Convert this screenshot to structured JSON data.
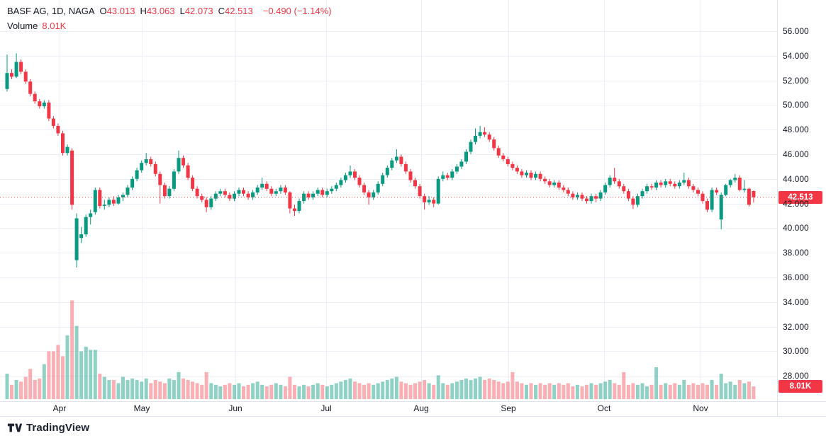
{
  "header": {
    "symbol_title": "BASF AG, 1D, NAGA",
    "ohlc_items": [
      {
        "label": "O",
        "value": "43.013"
      },
      {
        "label": "H",
        "value": "43.063"
      },
      {
        "label": "L",
        "value": "42.073"
      },
      {
        "label": "C",
        "value": "42.513"
      }
    ],
    "change_text": "−0.490 (−1.14%)",
    "volume_label": "Volume",
    "volume_value": "8.01K"
  },
  "price_axis": {
    "tick_labels": [
      "56.000",
      "54.000",
      "52.000",
      "50.000",
      "48.000",
      "46.000",
      "44.000",
      "42.000",
      "40.000",
      "38.000",
      "36.000",
      "34.000",
      "32.000",
      "30.000",
      "28.000"
    ],
    "last_price_badge": "42.513",
    "volume_badge": "8.01K"
  },
  "time_axis": {
    "month_labels": [
      "Apr",
      "May",
      "Jun",
      "Jul",
      "Aug",
      "Sep",
      "Oct",
      "Nov"
    ]
  },
  "logo_text": "TradingView",
  "colors": {
    "up": "#089981",
    "down": "#f23645",
    "vol_up": "rgba(8,153,129,0.45)",
    "vol_down": "rgba(242,54,69,0.40)",
    "grid": "#edf0f6",
    "separator": "#dfe3eb",
    "axis_text": "#131722",
    "badge_bg": "#f23645",
    "last_price_line": "#f23645",
    "background": "#ffffff"
  },
  "chart_data": {
    "type": "candlestick",
    "title": "BASF AG, 1D, NAGA",
    "symbol": "BASF AG",
    "interval": "1D",
    "exchange": "NAGA",
    "legend_last": {
      "open": 43.013,
      "high": 43.063,
      "low": 42.073,
      "close": 42.513,
      "change": -0.49,
      "change_pct": -1.14,
      "volume_k": 8.01
    },
    "price_ticks": [
      28,
      30,
      32,
      34,
      36,
      38,
      40,
      42,
      44,
      46,
      48,
      50,
      52,
      54,
      56
    ],
    "months": [
      "Apr",
      "May",
      "Jun",
      "Jul",
      "Aug",
      "Sep",
      "Oct",
      "Nov"
    ],
    "last_close": 42.513,
    "volume_unit": "K",
    "candles_format": [
      "open",
      "high",
      "low",
      "close",
      "volume_k"
    ],
    "candles": [
      [
        51.3,
        54.1,
        51.1,
        52.6,
        16
      ],
      [
        52.6,
        52.9,
        52.1,
        52.3,
        9
      ],
      [
        52.3,
        54.2,
        52.2,
        53.5,
        12
      ],
      [
        53.5,
        53.7,
        52.5,
        52.7,
        11
      ],
      [
        52.7,
        52.9,
        51.7,
        51.9,
        14
      ],
      [
        51.9,
        52.1,
        50.7,
        50.9,
        19
      ],
      [
        50.9,
        51.1,
        50.1,
        50.3,
        12
      ],
      [
        50.3,
        50.5,
        49.7,
        49.9,
        13
      ],
      [
        49.9,
        50.4,
        49.7,
        50.2,
        22
      ],
      [
        50.2,
        50.4,
        48.7,
        48.9,
        30
      ],
      [
        48.9,
        49.1,
        48.1,
        48.3,
        30
      ],
      [
        48.3,
        48.5,
        47.5,
        47.7,
        34
      ],
      [
        47.7,
        47.9,
        45.9,
        46.1,
        27
      ],
      [
        46.1,
        46.8,
        45.9,
        46.6,
        40
      ],
      [
        46.3,
        46.5,
        41.5,
        41.9,
        62
      ],
      [
        37.4,
        41.2,
        36.8,
        40.8,
        46
      ],
      [
        39.2,
        40.1,
        38.8,
        39.5,
        30
      ],
      [
        39.5,
        41.1,
        39.3,
        40.9,
        33
      ],
      [
        40.9,
        41.5,
        40.3,
        41.2,
        31
      ],
      [
        41.3,
        43.3,
        41.1,
        43.1,
        31
      ],
      [
        43.1,
        43.3,
        41.6,
        41.8,
        16
      ],
      [
        41.8,
        42.3,
        41.5,
        41.9,
        14
      ],
      [
        41.9,
        42.5,
        41.7,
        42.3,
        12
      ],
      [
        42.3,
        42.6,
        41.8,
        42.0,
        12
      ],
      [
        42.0,
        42.7,
        41.9,
        42.5,
        10
      ],
      [
        42.5,
        42.9,
        42.2,
        42.7,
        14
      ],
      [
        42.7,
        43.5,
        42.5,
        43.3,
        12
      ],
      [
        43.3,
        44.2,
        43.1,
        44.0,
        13
      ],
      [
        44.0,
        44.9,
        43.8,
        44.7,
        12
      ],
      [
        44.7,
        45.5,
        44.5,
        45.3,
        11
      ],
      [
        45.3,
        46.1,
        45.1,
        45.6,
        13
      ],
      [
        45.6,
        45.8,
        45.0,
        45.2,
        10
      ],
      [
        45.2,
        45.4,
        44.2,
        44.4,
        12
      ],
      [
        44.4,
        44.6,
        42.0,
        43.5,
        11
      ],
      [
        43.5,
        43.7,
        42.4,
        42.6,
        10
      ],
      [
        42.6,
        43.4,
        42.4,
        43.2,
        13
      ],
      [
        43.2,
        44.8,
        43.0,
        44.6,
        12
      ],
      [
        44.6,
        46.3,
        44.4,
        45.7,
        17
      ],
      [
        45.7,
        45.9,
        44.9,
        45.1,
        13
      ],
      [
        45.1,
        45.3,
        43.9,
        44.1,
        12
      ],
      [
        44.1,
        44.3,
        43.0,
        43.2,
        11
      ],
      [
        43.2,
        43.4,
        42.4,
        42.6,
        10
      ],
      [
        42.6,
        42.8,
        42.1,
        42.3,
        9
      ],
      [
        42.3,
        42.5,
        41.3,
        41.7,
        17
      ],
      [
        41.7,
        42.6,
        41.5,
        42.4,
        10
      ],
      [
        42.4,
        43.0,
        42.2,
        42.8,
        9
      ],
      [
        42.8,
        43.2,
        42.6,
        43.0,
        8
      ],
      [
        43.0,
        43.2,
        42.5,
        42.7,
        9
      ],
      [
        42.7,
        42.9,
        42.2,
        42.4,
        10
      ],
      [
        42.4,
        43.0,
        42.2,
        42.8,
        9
      ],
      [
        42.8,
        43.3,
        42.6,
        43.1,
        10
      ],
      [
        43.1,
        43.3,
        42.6,
        42.8,
        8
      ],
      [
        42.8,
        43.0,
        42.3,
        42.5,
        9
      ],
      [
        42.5,
        43.1,
        42.3,
        42.9,
        10
      ],
      [
        42.9,
        43.5,
        42.7,
        43.3,
        11
      ],
      [
        43.3,
        44.1,
        43.1,
        43.6,
        9
      ],
      [
        43.6,
        43.8,
        43.0,
        43.2,
        8
      ],
      [
        43.2,
        43.4,
        42.6,
        42.8,
        9
      ],
      [
        42.8,
        43.2,
        42.6,
        43.0,
        10
      ],
      [
        43.0,
        43.5,
        42.8,
        43.3,
        9
      ],
      [
        43.3,
        43.5,
        42.7,
        42.9,
        8
      ],
      [
        42.9,
        43.0,
        41.2,
        41.6,
        14
      ],
      [
        41.6,
        41.9,
        41.0,
        41.4,
        9
      ],
      [
        41.4,
        42.4,
        41.2,
        42.2,
        8
      ],
      [
        42.2,
        43.0,
        42.0,
        42.8,
        9
      ],
      [
        42.8,
        43.0,
        42.3,
        42.5,
        8
      ],
      [
        42.5,
        43.0,
        42.3,
        42.8,
        9
      ],
      [
        42.8,
        43.3,
        42.6,
        43.1,
        10
      ],
      [
        43.1,
        43.3,
        42.5,
        42.7,
        9
      ],
      [
        42.7,
        43.2,
        42.5,
        43.0,
        8
      ],
      [
        43.0,
        43.4,
        42.8,
        43.2,
        9
      ],
      [
        43.2,
        43.7,
        43.0,
        43.5,
        10
      ],
      [
        43.5,
        44.1,
        43.3,
        43.9,
        11
      ],
      [
        43.9,
        44.5,
        43.7,
        44.3,
        12
      ],
      [
        44.3,
        45.1,
        44.1,
        44.6,
        13
      ],
      [
        44.6,
        44.8,
        43.9,
        44.1,
        11
      ],
      [
        44.1,
        44.3,
        43.3,
        43.5,
        10
      ],
      [
        43.5,
        43.7,
        42.7,
        42.9,
        9
      ],
      [
        42.9,
        43.1,
        41.9,
        42.5,
        10
      ],
      [
        42.5,
        43.1,
        42.3,
        42.9,
        9
      ],
      [
        42.9,
        43.8,
        42.7,
        43.6,
        10
      ],
      [
        43.6,
        44.5,
        43.4,
        44.3,
        11
      ],
      [
        44.3,
        45.1,
        44.1,
        44.9,
        12
      ],
      [
        44.9,
        45.7,
        44.7,
        45.5,
        13
      ],
      [
        45.5,
        46.4,
        45.3,
        45.8,
        14
      ],
      [
        45.8,
        46.0,
        45.0,
        45.2,
        11
      ],
      [
        45.2,
        45.4,
        44.4,
        44.6,
        10
      ],
      [
        44.6,
        44.8,
        43.7,
        43.9,
        9
      ],
      [
        43.9,
        44.1,
        43.2,
        43.4,
        10
      ],
      [
        43.4,
        43.6,
        42.4,
        42.6,
        11
      ],
      [
        42.6,
        42.8,
        41.5,
        42.1,
        12
      ],
      [
        42.1,
        42.6,
        41.9,
        42.3,
        10
      ],
      [
        42.3,
        42.5,
        41.7,
        42.0,
        9
      ],
      [
        42.0,
        44.2,
        41.9,
        44.0,
        15
      ],
      [
        44.0,
        44.6,
        43.8,
        44.3,
        10
      ],
      [
        44.3,
        44.5,
        43.9,
        44.1,
        9
      ],
      [
        44.1,
        44.8,
        43.9,
        44.6,
        10
      ],
      [
        44.6,
        45.2,
        44.4,
        45.0,
        11
      ],
      [
        45.0,
        45.6,
        44.8,
        45.4,
        12
      ],
      [
        45.4,
        46.4,
        45.2,
        46.2,
        13
      ],
      [
        46.2,
        47.2,
        46.0,
        47.0,
        12
      ],
      [
        47.0,
        48.1,
        46.8,
        47.5,
        13
      ],
      [
        47.5,
        48.3,
        47.3,
        47.8,
        14
      ],
      [
        47.8,
        48.2,
        47.4,
        47.6,
        12
      ],
      [
        47.6,
        47.8,
        47.0,
        47.2,
        13
      ],
      [
        47.2,
        47.4,
        46.3,
        46.5,
        12
      ],
      [
        46.5,
        46.7,
        45.7,
        45.9,
        11
      ],
      [
        45.9,
        46.1,
        45.4,
        45.6,
        10
      ],
      [
        45.6,
        45.8,
        45.0,
        45.2,
        11
      ],
      [
        45.2,
        45.4,
        44.7,
        44.9,
        17
      ],
      [
        44.9,
        45.1,
        44.4,
        44.6,
        11
      ],
      [
        44.6,
        44.8,
        44.1,
        44.3,
        10
      ],
      [
        44.3,
        44.7,
        44.1,
        44.5,
        9
      ],
      [
        44.5,
        44.7,
        43.9,
        44.1,
        10
      ],
      [
        44.1,
        44.6,
        43.9,
        44.4,
        9
      ],
      [
        44.4,
        44.6,
        43.8,
        44.0,
        10
      ],
      [
        44.0,
        44.2,
        43.6,
        43.8,
        9
      ],
      [
        43.8,
        44.0,
        43.3,
        43.5,
        10
      ],
      [
        43.5,
        43.9,
        43.3,
        43.7,
        9
      ],
      [
        43.7,
        43.9,
        43.1,
        43.3,
        10
      ],
      [
        43.3,
        43.5,
        42.9,
        43.1,
        9
      ],
      [
        43.1,
        43.3,
        42.6,
        42.8,
        10
      ],
      [
        42.8,
        43.0,
        42.3,
        42.5,
        8
      ],
      [
        42.5,
        42.9,
        42.3,
        42.7,
        9
      ],
      [
        42.7,
        42.9,
        42.2,
        42.4,
        8
      ],
      [
        42.4,
        42.6,
        42.0,
        42.2,
        9
      ],
      [
        42.2,
        42.8,
        42.0,
        42.6,
        10
      ],
      [
        42.6,
        42.8,
        42.1,
        42.4,
        9
      ],
      [
        42.4,
        43.1,
        42.2,
        42.9,
        10
      ],
      [
        42.9,
        43.7,
        42.7,
        43.5,
        11
      ],
      [
        43.5,
        44.3,
        43.3,
        44.1,
        12
      ],
      [
        44.1,
        44.9,
        43.6,
        43.8,
        10
      ],
      [
        43.8,
        44.0,
        43.2,
        43.4,
        9
      ],
      [
        43.4,
        43.6,
        42.8,
        43.0,
        17
      ],
      [
        43.0,
        43.2,
        42.2,
        42.4,
        9
      ],
      [
        42.4,
        42.6,
        41.55,
        41.9,
        10
      ],
      [
        41.9,
        42.8,
        41.7,
        42.6,
        9
      ],
      [
        42.6,
        43.2,
        42.4,
        43.0,
        10
      ],
      [
        43.0,
        43.6,
        42.8,
        43.4,
        8
      ],
      [
        43.4,
        43.6,
        43.1,
        43.3,
        9
      ],
      [
        43.3,
        43.9,
        43.1,
        43.7,
        20
      ],
      [
        43.7,
        43.9,
        43.3,
        43.5,
        9
      ],
      [
        43.5,
        44.0,
        43.3,
        43.8,
        10
      ],
      [
        43.8,
        44.0,
        43.4,
        43.6,
        9
      ],
      [
        43.6,
        43.8,
        43.2,
        43.4,
        10
      ],
      [
        43.4,
        43.9,
        43.2,
        43.7,
        9
      ],
      [
        43.7,
        44.5,
        43.5,
        43.9,
        12
      ],
      [
        43.9,
        44.1,
        43.2,
        43.4,
        9
      ],
      [
        43.4,
        43.6,
        42.9,
        43.1,
        10
      ],
      [
        43.1,
        43.3,
        42.6,
        42.8,
        9
      ],
      [
        42.8,
        43.0,
        42.0,
        42.2,
        10
      ],
      [
        42.2,
        42.4,
        41.3,
        41.5,
        9
      ],
      [
        41.5,
        43.3,
        41.3,
        43.1,
        12
      ],
      [
        43.1,
        43.3,
        42.7,
        42.9,
        9
      ],
      [
        40.7,
        42.9,
        39.9,
        42.7,
        16
      ],
      [
        42.7,
        43.6,
        42.6,
        43.5,
        10
      ],
      [
        43.5,
        44.0,
        43.3,
        43.9,
        11
      ],
      [
        43.9,
        44.4,
        43.7,
        44.1,
        9
      ],
      [
        44.1,
        44.3,
        43.0,
        43.1,
        12
      ],
      [
        43.1,
        43.9,
        42.9,
        43.2,
        10
      ],
      [
        43.2,
        43.3,
        41.75,
        41.9,
        11
      ],
      [
        43.013,
        43.063,
        42.073,
        42.513,
        8.01
      ]
    ]
  }
}
